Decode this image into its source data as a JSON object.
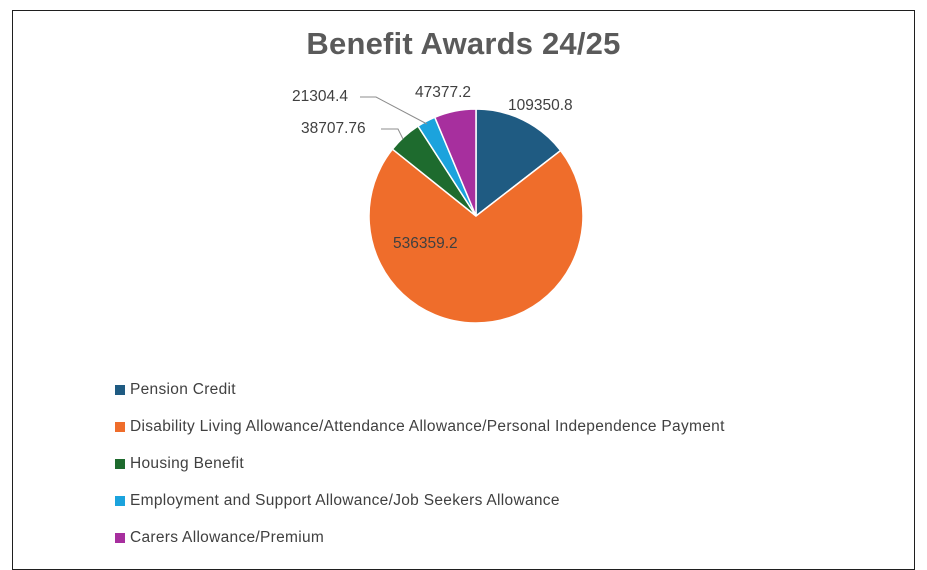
{
  "chart_data": {
    "type": "pie",
    "title": "Benefit Awards 24/25",
    "legend_position": "bottom",
    "series": [
      {
        "name": "Pension Credit",
        "value": 109350.8,
        "label": "109350.8",
        "color": "#1f5b82"
      },
      {
        "name": "Disability Living Allowance/Attendance Allowance/Personal Independence Payment",
        "value": 536359.2,
        "label": "536359.2",
        "color": "#ef6d2b"
      },
      {
        "name": "Housing Benefit",
        "value": 38707.76,
        "label": "38707.76",
        "color": "#1e6b2e"
      },
      {
        "name": "Employment and Support Allowance/Job Seekers Allowance",
        "value": 21304.4,
        "label": "21304.4",
        "color": "#1ba3dd"
      },
      {
        "name": "Carers Allowance/Premium",
        "value": 47377.2,
        "label": "47377.2",
        "color": "#a72f9e"
      }
    ]
  }
}
